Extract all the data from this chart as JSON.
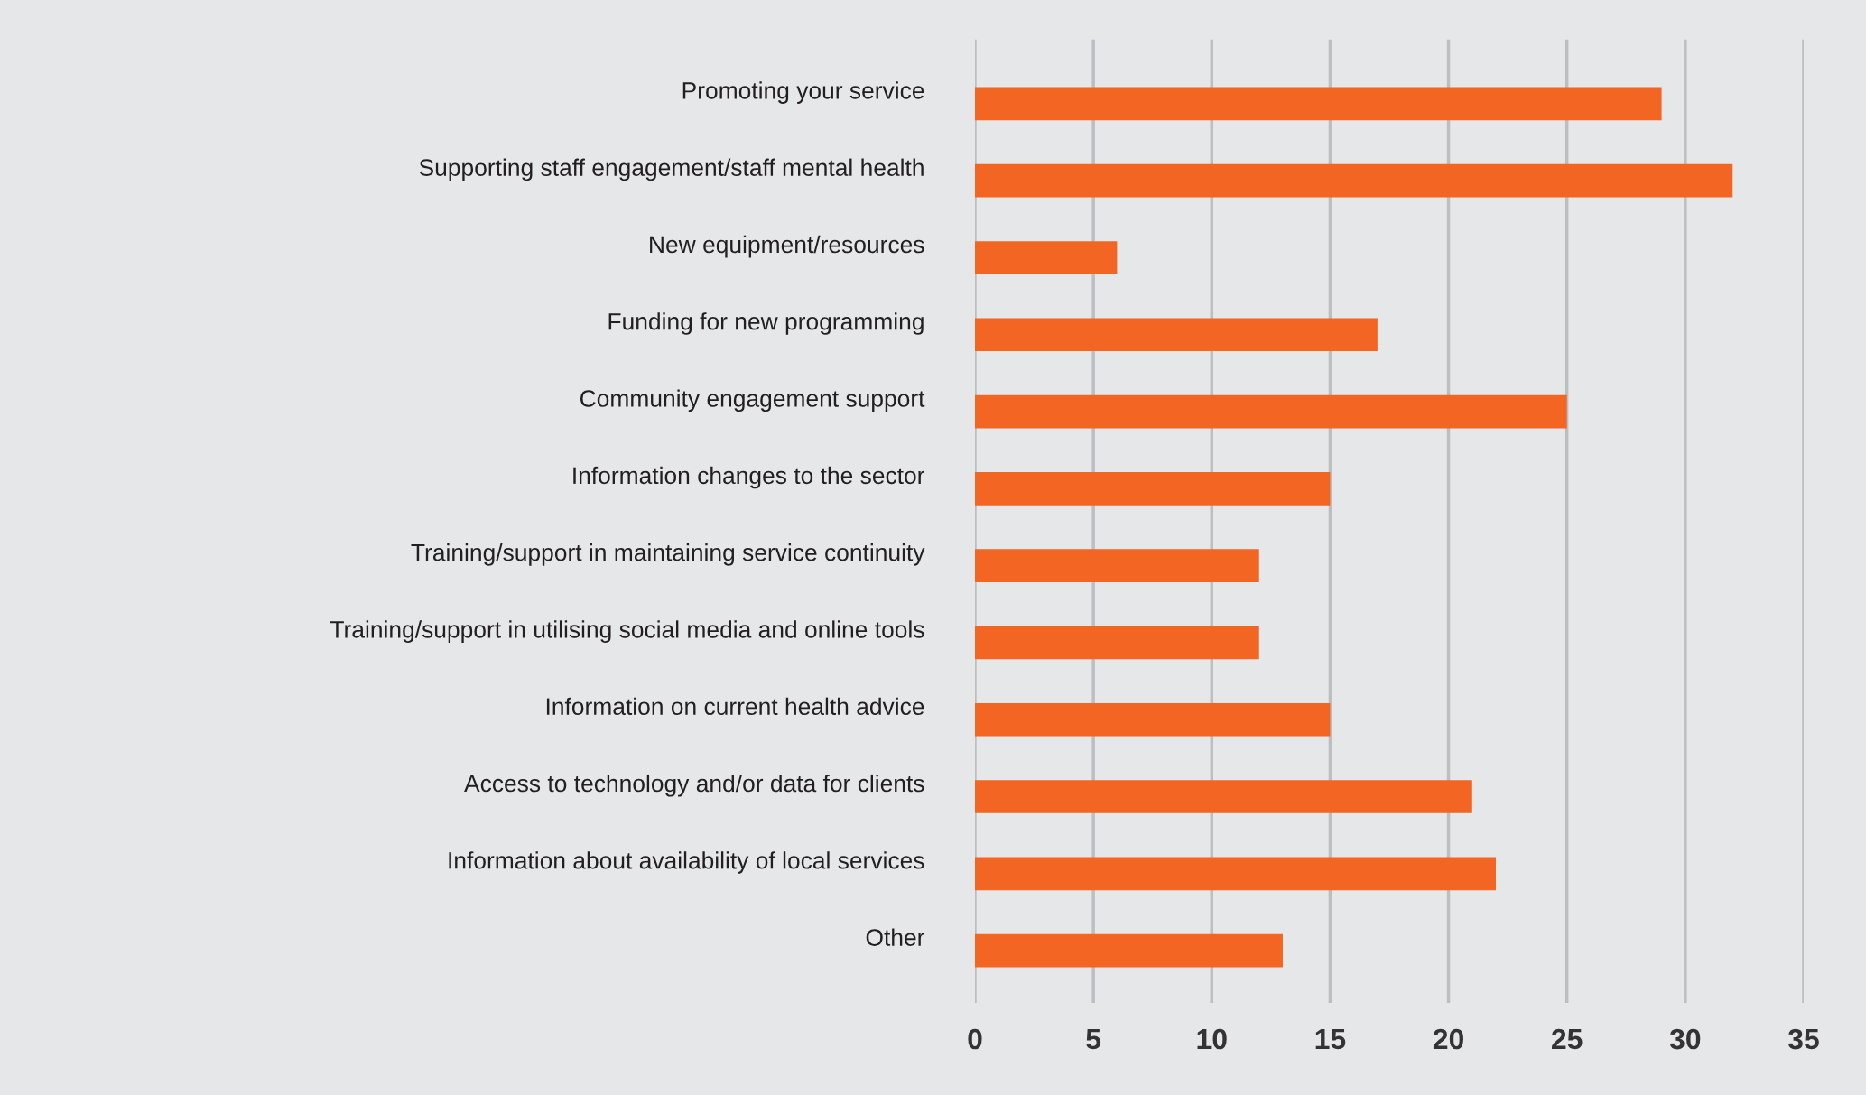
{
  "chart_data": {
    "type": "bar",
    "orientation": "horizontal",
    "categories": [
      "Promoting your service",
      "Supporting staff engagement/staff mental health",
      "New equipment/resources",
      "Funding for new programming",
      "Community engagement support",
      "Information changes to the sector",
      "Training/support in maintaining service continuity",
      "Training/support in utilising social media and online tools",
      "Information on current health advice",
      "Access to technology and/or data for clients",
      "Information about availability of local services",
      "Other"
    ],
    "values": [
      29,
      32,
      6,
      17,
      25,
      15,
      12,
      12,
      15,
      21,
      22,
      13
    ],
    "color": "#f26522",
    "xlim": [
      0,
      35
    ],
    "xticks": [
      0,
      5,
      10,
      15,
      20,
      25,
      30,
      35
    ],
    "grid": "x",
    "legend": false
  }
}
